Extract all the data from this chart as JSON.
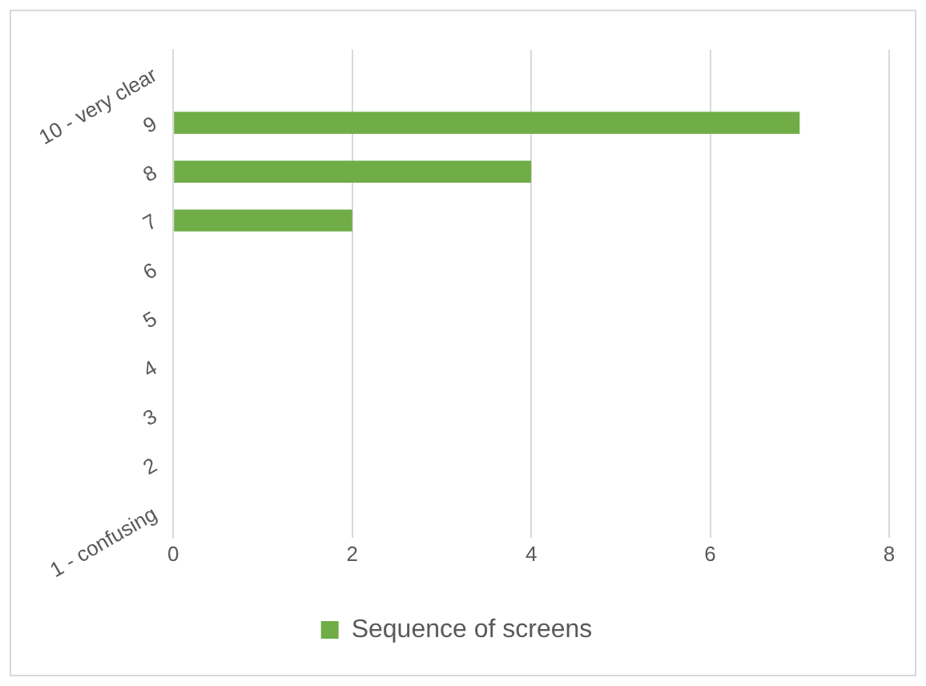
{
  "chart_data": {
    "type": "bar",
    "orientation": "horizontal",
    "categories": [
      "10 - very clear",
      "9",
      "8",
      "7",
      "6",
      "5",
      "4",
      "3",
      "2",
      "1 - confusing"
    ],
    "series": [
      {
        "name": "Sequence of screens",
        "color": "#70ad47",
        "values": [
          0,
          7,
          4,
          2,
          0,
          0,
          0,
          0,
          0,
          0
        ]
      }
    ],
    "xlim": [
      0,
      8
    ],
    "xticks": [
      0,
      2,
      4,
      6,
      8
    ],
    "grid": "x",
    "legend": "bottom"
  }
}
